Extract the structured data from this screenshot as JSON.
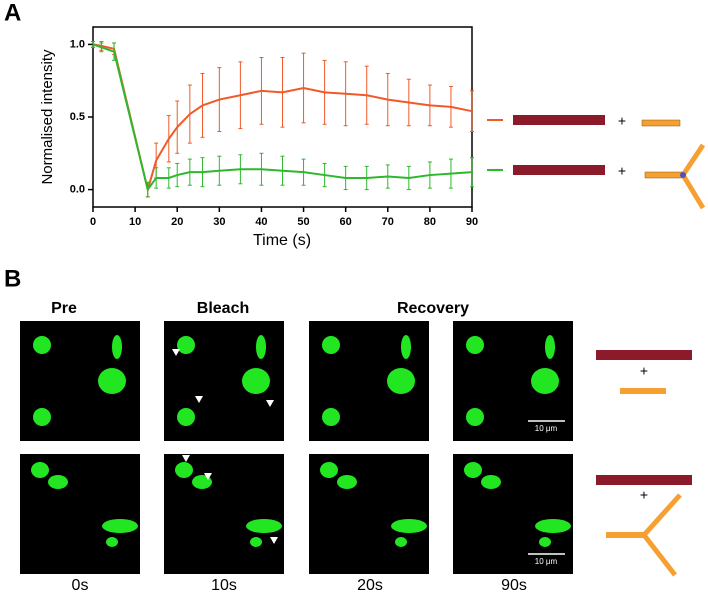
{
  "panel_labels": [
    "A",
    "B"
  ],
  "chart_data": {
    "type": "line",
    "x_label": "Time (s)",
    "y_label": "Normalised intensity",
    "x": [
      0,
      2,
      5,
      13,
      15,
      18,
      20,
      23,
      26,
      30,
      35,
      40,
      45,
      50,
      55,
      60,
      65,
      70,
      75,
      80,
      85,
      90
    ],
    "series": [
      {
        "color": "#f05a28",
        "values": [
          1.0,
          0.99,
          0.97,
          0.0,
          0.2,
          0.35,
          0.43,
          0.52,
          0.58,
          0.62,
          0.65,
          0.68,
          0.67,
          0.7,
          0.67,
          0.66,
          0.65,
          0.62,
          0.6,
          0.58,
          0.57,
          0.54
        ],
        "errors": [
          0.02,
          0.03,
          0.04,
          0.05,
          0.12,
          0.16,
          0.18,
          0.2,
          0.22,
          0.22,
          0.23,
          0.23,
          0.24,
          0.24,
          0.22,
          0.22,
          0.2,
          0.18,
          0.16,
          0.14,
          0.14,
          0.14
        ]
      },
      {
        "color": "#2db82d",
        "values": [
          1.0,
          0.98,
          0.95,
          0.0,
          0.08,
          0.08,
          0.1,
          0.12,
          0.12,
          0.13,
          0.14,
          0.14,
          0.13,
          0.12,
          0.1,
          0.08,
          0.08,
          0.09,
          0.08,
          0.1,
          0.11,
          0.12
        ],
        "errors": [
          0.02,
          0.03,
          0.06,
          0.05,
          0.07,
          0.07,
          0.08,
          0.09,
          0.1,
          0.1,
          0.1,
          0.11,
          0.1,
          0.09,
          0.08,
          0.08,
          0.08,
          0.08,
          0.08,
          0.09,
          0.1,
          0.1
        ]
      }
    ],
    "xlim": [
      0,
      90
    ],
    "xticks": [
      0,
      10,
      20,
      30,
      40,
      50,
      60,
      70,
      80,
      90
    ],
    "ylim": [
      -0.12,
      1.12
    ],
    "yticks": [
      {
        "value": 0,
        "label": "0.0"
      },
      {
        "value": 0.5,
        "label": "0.5"
      },
      {
        "value": 1,
        "label": "1.0"
      }
    ]
  },
  "legend_plus": "+",
  "microscopy": {
    "headers": [
      "Pre",
      "Bleach",
      "Recovery"
    ],
    "times": [
      "0s",
      "10s",
      "20s",
      "90s"
    ],
    "scale_bar": "10 μm",
    "plus": "+"
  }
}
